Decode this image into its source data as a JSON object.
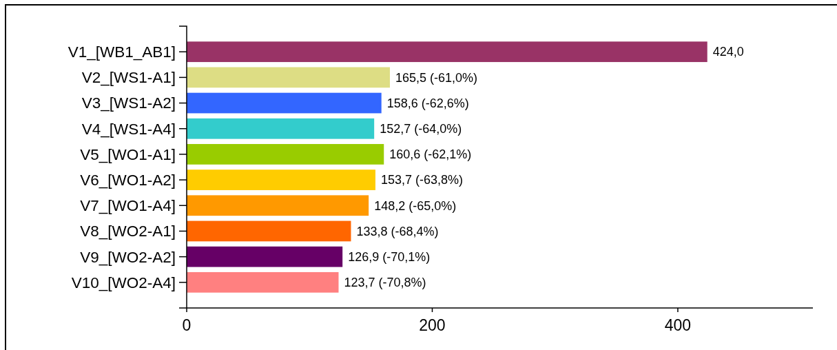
{
  "chart_data": {
    "type": "bar",
    "orientation": "horizontal",
    "categories": [
      "V1_[WB1_AB1]",
      "V2_[WS1-A1]",
      "V3_[WS1-A2]",
      "V4_[WS1-A4]",
      "V5_[WO1-A1]",
      "V6_[WO1-A2]",
      "V7_[WO1-A4]",
      "V8_[WO2-A1]",
      "V9_[WO2-A2]",
      "V10_[WO2-A4]"
    ],
    "values": [
      424.0,
      165.5,
      158.6,
      152.7,
      160.6,
      153.7,
      148.2,
      133.8,
      126.9,
      123.7
    ],
    "colors": [
      "#993366",
      "#dddd84",
      "#3366ff",
      "#33cccc",
      "#99cc00",
      "#ffcc00",
      "#ff9900",
      "#ff6600",
      "#660066",
      "#ff8080"
    ],
    "value_labels": [
      "424,0",
      "165,5 (-61,0%)",
      "158,6 (-62,6%)",
      "152,7 (-64,0%)",
      "160,6 (-62,1%)",
      "153,7 (-63,8%)",
      "148,2 (-65,0%)",
      "133,8 (-68,4%)",
      "126,9 (-70,1%)",
      "123,7 (-70,8%)"
    ],
    "xlim": [
      0,
      510
    ],
    "xticks": [
      0,
      200,
      400
    ]
  }
}
